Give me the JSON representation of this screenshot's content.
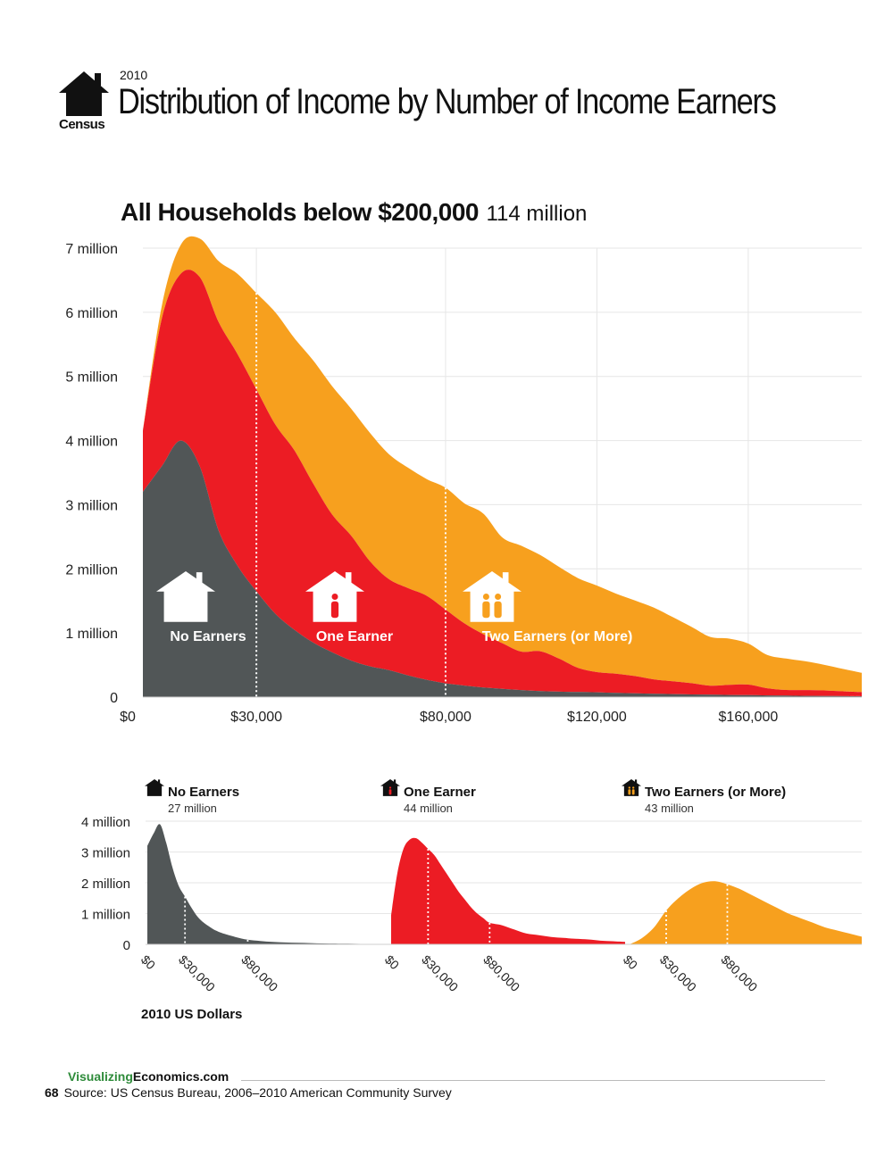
{
  "header": {
    "year": "2010",
    "title": "Distribution of Income by Number of Income Earners",
    "logo_label": "Census"
  },
  "main": {
    "title": "All Households below $200,000",
    "count": "114 million",
    "y_ticks": [
      "0",
      "1 million",
      "2 million",
      "3 million",
      "4 million",
      "5 million",
      "6 million",
      "7 million"
    ],
    "x_ticks": [
      "$0",
      "$30,000",
      "$80,000",
      "$120,000",
      "$160,000"
    ],
    "labels": {
      "no": "No Earners",
      "one": "One Earner",
      "two": "Two Earners (or More)"
    }
  },
  "small": {
    "y_ticks": [
      "0",
      "1 million",
      "2 million",
      "3 million",
      "4 million"
    ],
    "panels": [
      {
        "title": "No Earners",
        "count": "27 million"
      },
      {
        "title": "One Earner",
        "count": "44 million"
      },
      {
        "title": "Two Earners (or More)",
        "count": "43 million"
      }
    ],
    "x_ticks": [
      "$0",
      "$30,000",
      "$80,000"
    ],
    "units": "2010 US Dollars"
  },
  "footer": {
    "site_a": "Visualizing",
    "site_b": "Economics.com",
    "page": "68",
    "source": "Source: US Census Bureau, 2006–2010 American Community Survey"
  },
  "colors": {
    "no": "#515657",
    "one": "#ec1c24",
    "two": "#f7a01e",
    "grid": "#e6e6e6",
    "site_green": "#2e8b3a"
  },
  "icons": {
    "logo": "house-icon",
    "no": "house-icon",
    "one": "house-one-person-icon",
    "two": "house-two-people-icon"
  },
  "chart_data": [
    {
      "type": "area",
      "stacked": true,
      "title": "All Households below $200,000",
      "subtitle": "114 million",
      "xlabel": "",
      "ylabel": "",
      "xlim": [
        0,
        190000
      ],
      "ylim": [
        0,
        7000000
      ],
      "grid": true,
      "x": [
        0,
        5000,
        10000,
        15000,
        20000,
        25000,
        30000,
        35000,
        40000,
        45000,
        50000,
        55000,
        60000,
        65000,
        70000,
        75000,
        80000,
        85000,
        90000,
        95000,
        100000,
        105000,
        110000,
        115000,
        120000,
        125000,
        130000,
        135000,
        140000,
        145000,
        150000,
        155000,
        160000,
        165000,
        170000,
        175000,
        180000,
        185000,
        190000
      ],
      "series": [
        {
          "name": "No Earners",
          "values": [
            3200000,
            3600000,
            4000000,
            3600000,
            2600000,
            2050000,
            1650000,
            1300000,
            1050000,
            850000,
            700000,
            570000,
            480000,
            420000,
            340000,
            270000,
            215000,
            180000,
            150000,
            130000,
            110000,
            95000,
            85000,
            80000,
            75000,
            65000,
            58000,
            52000,
            48000,
            42000,
            38000,
            34000,
            30000,
            26000,
            23000,
            20000,
            17000,
            15000,
            13000
          ]
        },
        {
          "name": "One Earner",
          "values": [
            950000,
            2300000,
            2600000,
            2950000,
            3250000,
            3300000,
            3150000,
            2950000,
            2800000,
            2480000,
            2150000,
            1950000,
            1640000,
            1420000,
            1360000,
            1310000,
            1150000,
            970000,
            830000,
            710000,
            600000,
            620000,
            515000,
            375000,
            315000,
            300000,
            270000,
            225000,
            200000,
            175000,
            140000,
            158000,
            165000,
            112000,
            88000,
            90000,
            88000,
            75000,
            65000
          ]
        },
        {
          "name": "Two Earners (or More)",
          "values": [
            0,
            200000,
            450000,
            600000,
            950000,
            1250000,
            1500000,
            1750000,
            1750000,
            1920000,
            2000000,
            1980000,
            2000000,
            1950000,
            1880000,
            1820000,
            1900000,
            1870000,
            1880000,
            1650000,
            1650000,
            1500000,
            1430000,
            1400000,
            1350000,
            1250000,
            1180000,
            1120000,
            1000000,
            880000,
            760000,
            720000,
            640000,
            520000,
            490000,
            450000,
            400000,
            350000,
            300000
          ]
        }
      ],
      "markers": [
        30000,
        80000
      ]
    },
    {
      "type": "area",
      "title": "No Earners",
      "subtitle": "27 million",
      "xlim": [
        0,
        190000
      ],
      "ylim": [
        0,
        4000000
      ],
      "x": [
        0,
        5000,
        10000,
        15000,
        20000,
        25000,
        30000,
        35000,
        40000,
        45000,
        50000,
        55000,
        60000,
        70000,
        80000,
        90000,
        100000,
        110000,
        120000,
        130000,
        140000,
        150000,
        160000,
        170000,
        180000,
        190000
      ],
      "values": [
        3200000,
        3600000,
        3900000,
        3300000,
        2500000,
        1900000,
        1550000,
        1200000,
        900000,
        700000,
        560000,
        440000,
        360000,
        240000,
        150000,
        110000,
        80000,
        60000,
        50000,
        40000,
        30000,
        25000,
        20000,
        15000,
        12000,
        10000
      ],
      "markers": [
        30000,
        80000
      ]
    },
    {
      "type": "area",
      "title": "One Earner",
      "subtitle": "44 million",
      "xlim": [
        0,
        190000
      ],
      "ylim": [
        0,
        4000000
      ],
      "x": [
        0,
        5000,
        10000,
        15000,
        20000,
        25000,
        30000,
        35000,
        40000,
        45000,
        50000,
        55000,
        60000,
        65000,
        70000,
        75000,
        80000,
        90000,
        100000,
        110000,
        120000,
        130000,
        140000,
        150000,
        160000,
        170000,
        180000,
        190000
      ],
      "values": [
        950000,
        2300000,
        3100000,
        3400000,
        3450000,
        3300000,
        3100000,
        2900000,
        2600000,
        2300000,
        2000000,
        1700000,
        1450000,
        1200000,
        1000000,
        850000,
        700000,
        620000,
        480000,
        350000,
        300000,
        240000,
        210000,
        180000,
        160000,
        120000,
        100000,
        80000
      ],
      "markers": [
        30000,
        80000
      ]
    },
    {
      "type": "area",
      "title": "Two Earners (or More)",
      "subtitle": "43 million",
      "xlim": [
        0,
        190000
      ],
      "ylim": [
        0,
        4000000
      ],
      "x": [
        0,
        10000,
        20000,
        30000,
        40000,
        50000,
        60000,
        70000,
        80000,
        90000,
        100000,
        110000,
        120000,
        130000,
        140000,
        150000,
        160000,
        170000,
        180000,
        190000
      ],
      "values": [
        0,
        200000,
        550000,
        1100000,
        1500000,
        1800000,
        2000000,
        2050000,
        1950000,
        1800000,
        1600000,
        1400000,
        1200000,
        1000000,
        850000,
        700000,
        550000,
        450000,
        350000,
        250000
      ],
      "markers": [
        30000,
        80000
      ]
    }
  ]
}
